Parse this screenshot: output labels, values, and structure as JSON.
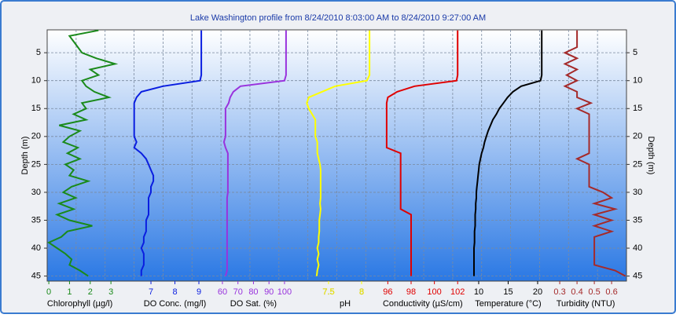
{
  "chart_data": {
    "type": "profile",
    "title": "Lake Washington profile from 8/24/2010 8:03:00 AM to 8/24/2010 9:27:00 AM",
    "ylabel": "Depth (m)",
    "y": [
      1,
      2,
      3,
      4,
      5,
      6,
      7,
      8,
      9,
      10,
      11,
      12,
      13,
      14,
      15,
      16,
      17,
      18,
      19,
      20,
      21,
      22,
      23,
      24,
      25,
      26,
      27,
      28,
      29,
      30,
      31,
      32,
      33,
      34,
      35,
      36,
      37,
      38,
      39,
      40,
      41,
      42,
      43,
      44,
      45
    ],
    "ylim": [
      0.9,
      45.9
    ],
    "invert_y": true,
    "yticks": [
      5,
      10,
      15,
      20,
      25,
      30,
      35,
      40,
      45
    ],
    "grid": true,
    "series": [
      {
        "name": "Chlorophyll (µg/l)",
        "color": "#1a8a1a",
        "xlim": [
          -0.08,
          27.9
        ],
        "xticks": [
          0,
          1,
          2,
          3
        ],
        "values": [
          2.4,
          1.0,
          1.2,
          1.4,
          1.6,
          2.3,
          3.2,
          2.0,
          2.4,
          1.6,
          1.8,
          2.2,
          2.9,
          1.6,
          1.8,
          1.2,
          1.8,
          0.5,
          1.5,
          1.0,
          0.7,
          1.4,
          0.9,
          1.5,
          0.8,
          1.2,
          1.0,
          1.9,
          1.1,
          0.7,
          1.3,
          0.5,
          1.2,
          0.4,
          1.0,
          2.1,
          0.9,
          0.6,
          0.0,
          0.4,
          0.8,
          1.1,
          1.0,
          1.5,
          1.9
        ]
      },
      {
        "name": "DO Conc. (mg/l)",
        "color": "#0a1ee0",
        "xlim": [
          2.67,
          26.84
        ],
        "xticks": [
          7,
          8,
          9
        ],
        "values": [
          9.1,
          9.1,
          9.1,
          9.1,
          9.1,
          9.1,
          9.1,
          9.1,
          9.1,
          9.05,
          7.5,
          6.6,
          6.4,
          6.3,
          6.3,
          6.3,
          6.3,
          6.3,
          6.3,
          6.3,
          6.4,
          6.3,
          6.6,
          6.8,
          6.9,
          7.0,
          7.1,
          7.1,
          7.0,
          7.0,
          6.9,
          6.9,
          6.9,
          6.9,
          6.8,
          6.8,
          6.8,
          6.7,
          6.7,
          6.6,
          6.7,
          6.7,
          6.7,
          6.6,
          6.6
        ]
      },
      {
        "name": "DO Sat. (%)",
        "color": "#9933dd",
        "xlim": [
          -52.9,
          320.3
        ],
        "xticks": [
          60,
          70,
          80,
          90,
          100
        ],
        "values": [
          101,
          101,
          101,
          101,
          101,
          101,
          101,
          101,
          101,
          100,
          71.6,
          67,
          65,
          64,
          62,
          62,
          62,
          62,
          62,
          62,
          61,
          62,
          63.5,
          63.5,
          63.5,
          63.5,
          63.5,
          63.5,
          63.5,
          63.5,
          63,
          63,
          63,
          63,
          63,
          63,
          63,
          63,
          63,
          63,
          63,
          63,
          63,
          63,
          62
        ]
      },
      {
        "name": "pH",
        "color": "#ffff00",
        "xlim": [
          3.24,
          12.01
        ],
        "xticks": [
          7.5,
          8
        ],
        "values": [
          8.12,
          8.12,
          8.12,
          8.12,
          8.12,
          8.12,
          8.12,
          8.12,
          8.12,
          8.08,
          7.6,
          7.4,
          7.2,
          7.17,
          7.2,
          7.25,
          7.3,
          7.3,
          7.3,
          7.3,
          7.33,
          7.33,
          7.33,
          7.35,
          7.37,
          7.38,
          7.38,
          7.38,
          7.38,
          7.38,
          7.38,
          7.37,
          7.38,
          7.37,
          7.36,
          7.36,
          7.36,
          7.35,
          7.35,
          7.33,
          7.35,
          7.33,
          7.35,
          7.33,
          7.32
        ]
      },
      {
        "name": "Conductivity (µS/cm)",
        "color": "#e00000",
        "xlim": [
          66.74,
          116.5
        ],
        "xticks": [
          96,
          98,
          100,
          102
        ],
        "values": [
          102.0,
          102.0,
          102.0,
          102.0,
          102.0,
          102.0,
          102.0,
          102.0,
          102.0,
          101.9,
          98.3,
          96.8,
          96.0,
          95.9,
          95.9,
          95.9,
          95.9,
          95.9,
          95.9,
          95.9,
          95.9,
          95.9,
          97.1,
          97.1,
          97.1,
          97.1,
          97.1,
          97.1,
          97.1,
          97.1,
          97.1,
          97.1,
          97.1,
          98.0,
          98.0,
          98.0,
          98.0,
          98.0,
          98.0,
          98.0,
          98.0,
          98.0,
          98.0,
          98.0,
          98.0
        ]
      },
      {
        "name": "Temperature (°C)",
        "color": "#000000",
        "xlim": [
          -63.2,
          35.07
        ],
        "xticks": [
          10,
          15,
          20
        ],
        "values": [
          20.7,
          20.7,
          20.7,
          20.7,
          20.7,
          20.7,
          20.7,
          20.7,
          20.7,
          20.5,
          17.2,
          15.8,
          14.9,
          14.2,
          13.5,
          13.0,
          12.4,
          12.0,
          11.6,
          11.3,
          11.0,
          10.8,
          10.5,
          10.3,
          10.1,
          10.0,
          9.9,
          9.8,
          9.7,
          9.6,
          9.6,
          9.5,
          9.5,
          9.4,
          9.4,
          9.4,
          9.3,
          9.3,
          9.3,
          9.2,
          9.2,
          9.2,
          9.2,
          9.2,
          9.2
        ]
      },
      {
        "name": "Turbidity (NTU)",
        "color": "#a52a2a",
        "xlim": [
          -2.664,
          0.686
        ],
        "xticks": [
          0.3,
          0.4,
          0.5,
          0.6
        ],
        "values": [
          0.4,
          0.4,
          0.4,
          0.4,
          0.33,
          0.4,
          0.33,
          0.4,
          0.34,
          0.4,
          0.33,
          0.4,
          0.4,
          0.48,
          0.4,
          0.47,
          0.47,
          0.47,
          0.47,
          0.47,
          0.47,
          0.47,
          0.47,
          0.4,
          0.47,
          0.47,
          0.47,
          0.47,
          0.47,
          0.55,
          0.6,
          0.5,
          0.62,
          0.5,
          0.6,
          0.5,
          0.6,
          0.5,
          0.5,
          0.5,
          0.5,
          0.5,
          0.5,
          0.62,
          0.68
        ]
      }
    ]
  }
}
